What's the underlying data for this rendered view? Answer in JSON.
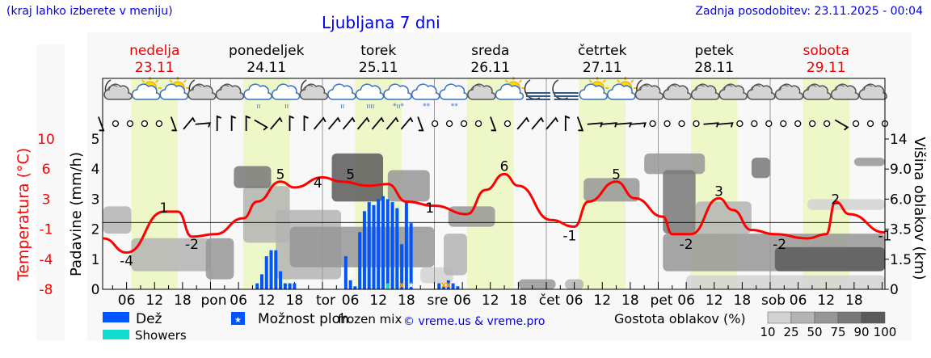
{
  "header": {
    "hint": "(kraj lahko izberete v meniju)",
    "title": "Ljubljana 7 dni",
    "updated": "Zadnja posodobitev: 23.11.2025 - 00:04"
  },
  "days": [
    {
      "name": "nedelja",
      "date": "23.11",
      "weekend": true,
      "abbr": ""
    },
    {
      "name": "ponedeljek",
      "date": "24.11",
      "weekend": false,
      "abbr": "pon"
    },
    {
      "name": "torek",
      "date": "25.11",
      "weekend": false,
      "abbr": "tor"
    },
    {
      "name": "sreda",
      "date": "26.11",
      "weekend": false,
      "abbr": "sre"
    },
    {
      "name": "četrtek",
      "date": "27.11",
      "weekend": false,
      "abbr": "čet"
    },
    {
      "name": "petek",
      "date": "28.11",
      "weekend": false,
      "abbr": "pet"
    },
    {
      "name": "sobota",
      "date": "29.11",
      "weekend": true,
      "abbr": "sob"
    }
  ],
  "colors": {
    "weekday": "#000000",
    "weekend": "#ee0000",
    "temperature": "#ff0000",
    "rain": "#0055ff",
    "showers": "#11ddcc",
    "frozen_mix": "#ffa500",
    "daylight": "#eef7c8",
    "background": "#f8f8f8",
    "link": "#0000ee"
  },
  "weather_icons": [
    "moon-cloud",
    "sun-cloud",
    "sun-cloud",
    "moon-cloud",
    "cloud",
    "cloud-drizzle",
    "cloud-drizzle",
    "moon-cloud",
    "cloud-drizzle",
    "cloud-rain",
    "cloud-sleet",
    "cloud-snow",
    "cloud-snow",
    "cloud",
    "sun-cloud",
    "moon-fog",
    "moon-fog",
    "sun-cloud",
    "sun-cloud",
    "moon-cloud",
    "cloud",
    "cloud",
    "cloud",
    "cloud",
    "cloud",
    "cloud",
    "cloud",
    "cloud"
  ],
  "wind": [
    "S",
    "calm",
    "calm",
    "calm",
    "calm",
    "S",
    "NE",
    "E",
    "N",
    "N",
    "N",
    "SE",
    "NE",
    "N",
    "N",
    "NE",
    "NE",
    "NE",
    "NE",
    "NE",
    "NE",
    "NE",
    "S",
    "calm",
    "calm",
    "calm",
    "calm",
    "S",
    "calm",
    "NE",
    "NE",
    "NE",
    "N",
    "S",
    "E",
    "E",
    "E",
    "E",
    "calm",
    "calm",
    "calm",
    "calm",
    "E",
    "E",
    "calm",
    "calm",
    "calm",
    "calm",
    "calm",
    "calm",
    "calm",
    "SE",
    "calm",
    "calm",
    "calm"
  ],
  "chart_data": {
    "type": "meteogram",
    "time_axis": {
      "hour_labels": [
        "06",
        "12",
        "18"
      ],
      "daylight_hours": [
        7,
        17
      ]
    },
    "axes": {
      "temperature": {
        "label": "Temperatura (°C)",
        "ticks": [
          "10",
          "6",
          "3",
          "-1",
          "-4",
          "-8"
        ],
        "range": [
          -8,
          10
        ]
      },
      "precipitation": {
        "label": "Padavine (mm/h)",
        "ticks": [
          "5",
          "4",
          "3",
          "2",
          "1",
          "0"
        ],
        "range": [
          0,
          5
        ]
      },
      "cloud_height": {
        "label": "Višina oblakov (km)",
        "ticks": [
          "14",
          "9.0",
          "6.0",
          "3.5",
          "1.5",
          "0"
        ],
        "values": [
          14,
          9,
          6,
          3.5,
          1.5,
          0
        ]
      }
    },
    "temperature": [
      [
        "23.11 01",
        -1.9
      ],
      [
        "23.11 06",
        -3.6
      ],
      [
        "23.11 14",
        1.3
      ],
      [
        "23.11 17",
        1.3
      ],
      [
        "23.11 20",
        -1.7
      ],
      [
        "24.11 01",
        -1.4
      ],
      [
        "24.11 07",
        0.5
      ],
      [
        "24.11 10",
        2.5
      ],
      [
        "24.11 15",
        4.9
      ],
      [
        "24.11 18",
        4.2
      ],
      [
        "25.11 00",
        5.4
      ],
      [
        "25.11 04",
        4.9
      ],
      [
        "25.11 10",
        4.4
      ],
      [
        "25.11 14",
        4.6
      ],
      [
        "25.11 18",
        2.5
      ],
      [
        "26.11 00",
        2.0
      ],
      [
        "26.11 07",
        1.0
      ],
      [
        "26.11 11",
        3.9
      ],
      [
        "26.11 15",
        5.8
      ],
      [
        "26.11 18",
        4.4
      ],
      [
        "27.11 01",
        0.3
      ],
      [
        "27.11 06",
        -0.5
      ],
      [
        "27.11 09",
        2.5
      ],
      [
        "27.11 15",
        4.9
      ],
      [
        "27.11 19",
        2.9
      ],
      [
        "28.11 01",
        0.7
      ],
      [
        "28.11 03",
        -1.4
      ],
      [
        "28.11 07",
        -1.4
      ],
      [
        "28.11 13",
        2.9
      ],
      [
        "28.11 16",
        1.5
      ],
      [
        "28.11 20",
        -0.9
      ],
      [
        "29.11 01",
        -1.4
      ],
      [
        "29.11 08",
        -1.9
      ],
      [
        "29.11 12",
        -1.4
      ],
      [
        "29.11 14",
        2.5
      ],
      [
        "29.11 17",
        1.0
      ],
      [
        "30.11 01",
        -1.2
      ]
    ],
    "temperature_labels": [
      [
        "23.11 06",
        "-4"
      ],
      [
        "23.11 14",
        "1"
      ],
      [
        "23.11 20",
        "-2"
      ],
      [
        "24.11 15",
        "5"
      ],
      [
        "24.11 23",
        "4"
      ],
      [
        "25.11 06",
        "5"
      ],
      [
        "25.11 23",
        "1"
      ],
      [
        "26.11 15",
        "6"
      ],
      [
        "27.11 05",
        "-1"
      ],
      [
        "27.11 15",
        "5"
      ],
      [
        "28.11 06",
        "-2"
      ],
      [
        "28.11 13",
        "3"
      ],
      [
        "29.11 02",
        "-2"
      ],
      [
        "29.11 14",
        "2"
      ],
      [
        "30.11 01",
        "-1"
      ]
    ],
    "rain": [
      [
        "24.11 10",
        0.2
      ],
      [
        "24.11 11",
        0.5
      ],
      [
        "24.11 12",
        1.1
      ],
      [
        "24.11 13",
        1.3
      ],
      [
        "24.11 14",
        1.3
      ],
      [
        "24.11 15",
        0.6
      ],
      [
        "24.11 16",
        0.2
      ],
      [
        "24.11 17",
        0.2
      ],
      [
        "24.11 18",
        0.2
      ],
      [
        "25.11 05",
        1.1
      ],
      [
        "25.11 06",
        0.3
      ],
      [
        "25.11 07",
        0.1
      ],
      [
        "25.11 08",
        1.9
      ],
      [
        "25.11 09",
        2.6
      ],
      [
        "25.11 10",
        2.9
      ],
      [
        "25.11 11",
        2.8
      ],
      [
        "25.11 12",
        3.0
      ],
      [
        "25.11 13",
        3.1
      ],
      [
        "25.11 14",
        3.0
      ],
      [
        "25.11 15",
        2.9
      ],
      [
        "25.11 16",
        2.7
      ],
      [
        "25.11 17",
        1.5
      ],
      [
        "25.11 18",
        2.9
      ],
      [
        "25.11 19",
        2.2
      ],
      [
        "26.11 01",
        0.2
      ],
      [
        "26.11 02",
        0.1
      ],
      [
        "26.11 03",
        0.3
      ],
      [
        "26.11 04",
        0.2
      ],
      [
        "26.11 05",
        0.1
      ]
    ],
    "showers": [
      [
        "25.11 14",
        0.2
      ]
    ],
    "frozen_mix": [
      "25.11 17",
      "26.11 02",
      "26.11 03"
    ],
    "thunderstorm_possible": [
      "25.11 19"
    ],
    "cloud_cover": [
      {
        "from": "23.11 01",
        "to": "23.11 07",
        "base_km": 3.2,
        "top_km": 5.4,
        "density": 50
      },
      {
        "from": "23.11 07",
        "to": "24.11 00",
        "base_km": 0.9,
        "top_km": 2.9,
        "density": 50
      },
      {
        "from": "23.11 23",
        "to": "24.11 05",
        "base_km": 0.5,
        "top_km": 2.9,
        "density": 75
      },
      {
        "from": "24.11 07",
        "to": "24.11 17",
        "base_km": 2.6,
        "top_km": 7.3,
        "density": 50
      },
      {
        "from": "24.11 05",
        "to": "24.11 13",
        "base_km": 7.1,
        "top_km": 9.5,
        "density": 90
      },
      {
        "from": "24.11 14",
        "to": "25.11 04",
        "base_km": 0.5,
        "top_km": 5.1,
        "density": 50
      },
      {
        "from": "24.11 17",
        "to": "26.11 00",
        "base_km": 1.1,
        "top_km": 3.7,
        "density": 75
      },
      {
        "from": "25.11 02",
        "to": "25.11 13",
        "base_km": 5.8,
        "top_km": 11.6,
        "density": 100
      },
      {
        "from": "25.11 14",
        "to": "25.11 23",
        "base_km": 5.8,
        "top_km": 8.9,
        "density": 75
      },
      {
        "from": "25.11 21",
        "to": "26.11 04",
        "base_km": 0.3,
        "top_km": 1.1,
        "density": 25
      },
      {
        "from": "26.11 03",
        "to": "26.11 13",
        "base_km": 3.7,
        "top_km": 5.4,
        "density": 75
      },
      {
        "from": "26.11 02",
        "to": "26.11 07",
        "base_km": 0.7,
        "top_km": 3.2,
        "density": 50
      },
      {
        "from": "26.11 18",
        "to": "27.11 02",
        "base_km": 0,
        "top_km": 0.5,
        "density": 75
      },
      {
        "from": "27.11 04",
        "to": "27.11 08",
        "base_km": 0,
        "top_km": 0.5,
        "density": 50
      },
      {
        "from": "27.11 08",
        "to": "27.11 20",
        "base_km": 5.8,
        "top_km": 8.1,
        "density": 75
      },
      {
        "from": "27.11 21",
        "to": "28.11 10",
        "base_km": 8.5,
        "top_km": 11.6,
        "density": 75
      },
      {
        "from": "28.11 01",
        "to": "28.11 08",
        "base_km": 3.2,
        "top_km": 8.9,
        "density": 90
      },
      {
        "from": "28.11 08",
        "to": "28.11 20",
        "base_km": 3.2,
        "top_km": 5.8,
        "density": 50
      },
      {
        "from": "28.11 01",
        "to": "30.11 01",
        "base_km": 0.9,
        "top_km": 3.2,
        "density": 75
      },
      {
        "from": "29.11 01",
        "to": "30.11 01",
        "base_km": 0.9,
        "top_km": 2.3,
        "density": 100
      },
      {
        "from": "28.11 20",
        "to": "29.11 00",
        "base_km": 8.1,
        "top_km": 10.9,
        "density": 90
      },
      {
        "from": "29.11 18",
        "to": "30.11 01",
        "base_km": 9.5,
        "top_km": 10.9,
        "density": 75
      },
      {
        "from": "28.11 06",
        "to": "30.11 01",
        "base_km": 0,
        "top_km": 0.7,
        "density": 25
      },
      {
        "from": "29.11 08",
        "to": "30.11 01",
        "base_km": 5.1,
        "top_km": 6.0,
        "density": 25
      }
    ],
    "legend": {
      "rain": "Dež",
      "showers": "Showers",
      "thunder": "Možnost ploh",
      "frozen": "frozen mix",
      "credit": "© vreme.us & vreme.pro",
      "cloud_density_title": "Gostota oblakov (%)",
      "cloud_density_ticks": [
        "10",
        "25",
        "50",
        "75",
        "90",
        "100"
      ],
      "cloud_density_colors": [
        "#d2d2d2",
        "#b4b4b4",
        "#969696",
        "#787878",
        "#5a5a5a"
      ]
    }
  }
}
